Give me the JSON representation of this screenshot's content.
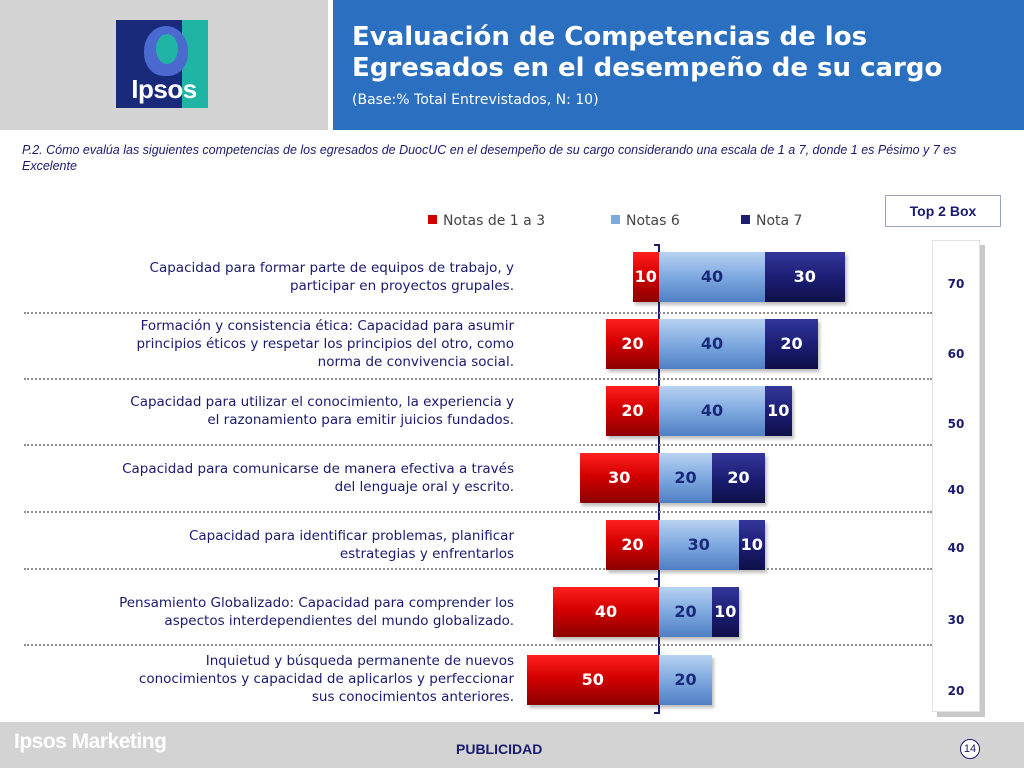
{
  "header": {
    "logo_text": "Ipsos",
    "title": "Evaluación de Competencias de los Egresados en el desempeño de su cargo",
    "subtitle": "(Base:% Total Entrevistados, N: 10)"
  },
  "question": "P.2. Cómo evalúa las siguientes competencias de los egresados de DuocUC en el desempeño de su cargo  considerando una escala de 1 a 7,  donde 1 es Pésimo y 7 es Excelente",
  "top2_label": "Top 2 Box",
  "footer": {
    "brand": "Ipsos Marketing",
    "center": "PUBLICIDAD",
    "page": "14"
  },
  "colors": {
    "red": "#d40000",
    "light_blue": "#7ea9e0",
    "navy": "#1c1e75",
    "header_blue": "#2a6fc0"
  },
  "chart_data": {
    "type": "bar",
    "orientation": "horizontal-diverging-stacked",
    "categories": [
      "Capacidad para formar parte de equipos de trabajo, y\nparticipar en proyectos grupales.",
      "Formación y consistencia ética: Capacidad para asumir\nprincipios éticos y respetar los principios del otro, como\nnorma de convivencia social.",
      "Capacidad para utilizar el conocimiento, la experiencia y\nel razonamiento para emitir juicios fundados.",
      "Capacidad para comunicarse de manera efectiva a través\ndel lenguaje oral y escrito.",
      "Capacidad para identificar problemas, planificar\nestrategias y enfrentarlos",
      "Pensamiento Globalizado: Capacidad para comprender los\naspectos interdependientes del mundo globalizado.",
      "Inquietud y búsqueda permanente de nuevos\nconocimientos y capacidad de aplicarlos y perfeccionar\nsus conocimientos anteriores."
    ],
    "series": [
      {
        "name": "Notas de 1 a 3",
        "color": "#d40000",
        "values": [
          10,
          20,
          20,
          30,
          20,
          40,
          50
        ]
      },
      {
        "name": "Notas 6",
        "color": "#7ea9e0",
        "values": [
          40,
          40,
          40,
          20,
          30,
          20,
          20
        ]
      },
      {
        "name": "Nota 7",
        "color": "#1c1e75",
        "values": [
          30,
          20,
          10,
          20,
          10,
          10,
          0
        ]
      }
    ],
    "top2box": [
      70,
      60,
      50,
      40,
      40,
      30,
      20
    ],
    "legend": "top"
  }
}
